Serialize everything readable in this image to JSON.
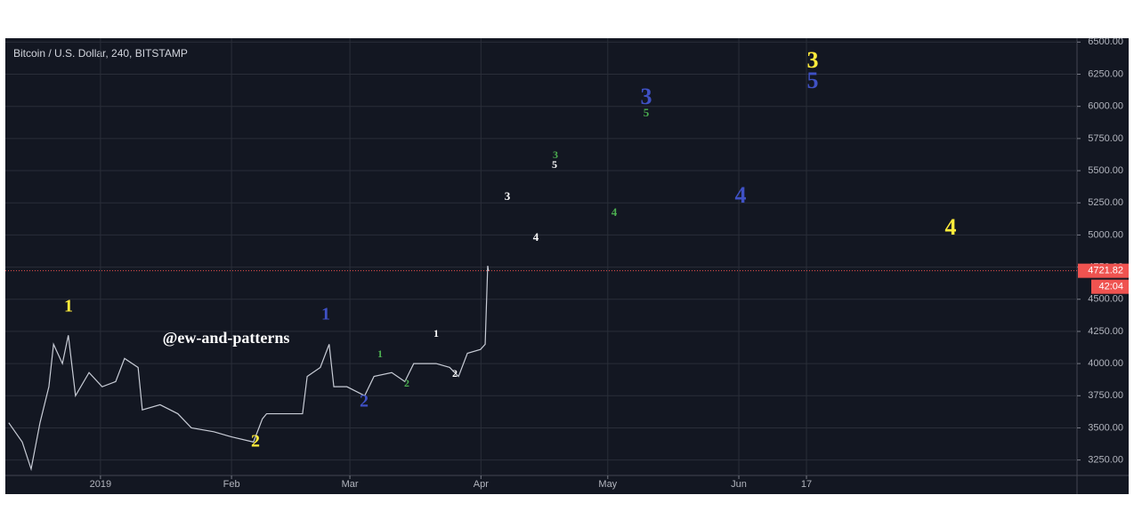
{
  "chart_data": {
    "type": "line",
    "title": "Bitcoin / U.S. Dollar, 240, BITSTAMP",
    "series": [
      {
        "name": "BTCUSD",
        "color": "#c8ccd6",
        "x": [
          -21.7,
          -18.5,
          -16.4,
          -14.3,
          -12.2,
          -11.1,
          -9.0,
          -7.6,
          -5.9,
          -2.7,
          0.4,
          3.6,
          5.7,
          8.9,
          9.9,
          14.1,
          18.3,
          21.5,
          26.8,
          31.0,
          36.2,
          38.3,
          39.3,
          47.8,
          48.9,
          52.0,
          54.1,
          55.2,
          58.3,
          62.5,
          64.7,
          68.9,
          72.0,
          74.1,
          79.4,
          82.6,
          84.7,
          86.8,
          89.9,
          91.0,
          91.6,
          91.8
        ],
        "values": [
          3540,
          3390,
          3180,
          3540,
          3820,
          4150,
          4000,
          4220,
          3750,
          3930,
          3820,
          3860,
          4040,
          3970,
          3640,
          3680,
          3610,
          3500,
          3470,
          3430,
          3390,
          3570,
          3610,
          3610,
          3900,
          3970,
          4150,
          3820,
          3820,
          3750,
          3900,
          3930,
          3860,
          4000,
          4000,
          3970,
          3900,
          4080,
          4110,
          4150,
          4760,
          4720
        ]
      }
    ],
    "xlim": [
      -22.5,
      231
    ],
    "xticks": [
      {
        "value": 0,
        "label": "2019"
      },
      {
        "value": 31,
        "label": "Feb"
      },
      {
        "value": 59,
        "label": "Mar"
      },
      {
        "value": 90,
        "label": "Apr"
      },
      {
        "value": 120,
        "label": "May"
      },
      {
        "value": 151,
        "label": "Jun"
      },
      {
        "value": 167,
        "label": "17"
      }
    ],
    "ylim": [
      3130,
      6530
    ],
    "yticks": [
      {
        "value": 3250,
        "label": "3250.00"
      },
      {
        "value": 3500,
        "label": "3500.00"
      },
      {
        "value": 3750,
        "label": "3750.00"
      },
      {
        "value": 4000,
        "label": "4000.00"
      },
      {
        "value": 4250,
        "label": "4250.00"
      },
      {
        "value": 4500,
        "label": "4500.00"
      },
      {
        "value": 4750,
        "label": "4750.00"
      },
      {
        "value": 5000,
        "label": "5000.00"
      },
      {
        "value": 5250,
        "label": "5250.00"
      },
      {
        "value": 5500,
        "label": "5500.00"
      },
      {
        "value": 5750,
        "label": "5750.00"
      },
      {
        "value": 6000,
        "label": "6000.00"
      },
      {
        "value": 6250,
        "label": "6250.00"
      },
      {
        "value": 6500,
        "label": "6500.00"
      }
    ],
    "grid": true,
    "last_price": {
      "value": 4721.82,
      "label": "4721.82",
      "color": "#ef5350"
    },
    "countdown": "42:04",
    "annotations": [
      {
        "text": "1",
        "color": "#ffeb3b"
      },
      {
        "text": "2",
        "color": "#ffeb3b"
      },
      {
        "text": "1",
        "color": "#3f51c5"
      },
      {
        "text": "2",
        "color": "#3f51c5"
      },
      {
        "text": "1",
        "color": "#4caf50"
      },
      {
        "text": "2",
        "color": "#4caf50"
      },
      {
        "text": "1",
        "color": "#ffffff"
      },
      {
        "text": "2",
        "color": "#ffffff"
      },
      {
        "text": "3",
        "color": "#ffffff"
      },
      {
        "text": "4",
        "color": "#ffffff"
      },
      {
        "text": "3",
        "color": "#4caf50"
      },
      {
        "text": "5",
        "color": "#ffffff"
      },
      {
        "text": "4",
        "color": "#4caf50"
      },
      {
        "text": "3",
        "color": "#3f51c5"
      },
      {
        "text": "5",
        "color": "#4caf50"
      },
      {
        "text": "4",
        "color": "#3f51c5"
      },
      {
        "text": "3",
        "color": "#ffeb3b"
      },
      {
        "text": "5",
        "color": "#3f51c5"
      },
      {
        "text": "4",
        "color": "#ffeb3b"
      },
      {
        "text": "@ew-and-patterns",
        "color": "#ffffff"
      }
    ]
  }
}
